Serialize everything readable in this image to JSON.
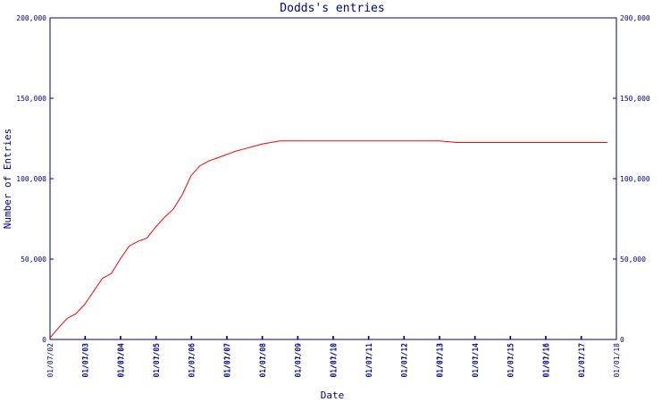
{
  "chart_data": {
    "type": "line",
    "title": "Dodds's entries",
    "xlabel": "Date",
    "ylabel": "Number of Entries",
    "ylim": [
      0,
      200000
    ],
    "y_ticks": [
      0,
      50000,
      100000,
      150000,
      200000
    ],
    "y_tick_labels": [
      "0",
      "50,000",
      "100,000",
      "150,000",
      "200,000"
    ],
    "right_y_tick_labels": [
      "0",
      "50,000",
      "100,000",
      "150,000",
      "200,000"
    ],
    "x_range": [
      "2002-01-07",
      "2018-01-01"
    ],
    "x_ticks": [
      {
        "date": "2002-01-07",
        "label": "01/07/02"
      },
      {
        "date": "2003-01-01",
        "label": "01/01/03"
      },
      {
        "date": "2003-01-07",
        "label": "01/07/03"
      },
      {
        "date": "2004-01-01",
        "label": "01/01/04"
      },
      {
        "date": "2004-01-07",
        "label": "01/07/04"
      },
      {
        "date": "2005-01-01",
        "label": "01/01/05"
      },
      {
        "date": "2005-01-07",
        "label": "01/07/05"
      },
      {
        "date": "2006-01-01",
        "label": "01/01/06"
      },
      {
        "date": "2006-01-07",
        "label": "01/07/06"
      },
      {
        "date": "2007-01-01",
        "label": "01/01/07"
      },
      {
        "date": "2007-01-07",
        "label": "01/07/07"
      },
      {
        "date": "2008-01-01",
        "label": "01/01/08"
      },
      {
        "date": "2008-01-07",
        "label": "01/07/08"
      },
      {
        "date": "2009-01-01",
        "label": "01/01/09"
      },
      {
        "date": "2009-01-07",
        "label": "01/07/09"
      },
      {
        "date": "2010-01-01",
        "label": "01/01/10"
      },
      {
        "date": "2010-01-07",
        "label": "01/07/10"
      },
      {
        "date": "2011-01-01",
        "label": "01/01/11"
      },
      {
        "date": "2011-01-07",
        "label": "01/07/11"
      },
      {
        "date": "2012-01-01",
        "label": "01/01/12"
      },
      {
        "date": "2012-01-07",
        "label": "01/07/12"
      },
      {
        "date": "2013-01-01",
        "label": "01/01/13"
      },
      {
        "date": "2013-01-07",
        "label": "01/07/13"
      },
      {
        "date": "2014-01-01",
        "label": "01/01/14"
      },
      {
        "date": "2014-01-07",
        "label": "01/07/14"
      },
      {
        "date": "2015-01-01",
        "label": "01/01/15"
      },
      {
        "date": "2015-01-07",
        "label": "01/07/15"
      },
      {
        "date": "2016-01-01",
        "label": "01/01/16"
      },
      {
        "date": "2016-01-07",
        "label": "01/07/16"
      },
      {
        "date": "2017-01-01",
        "label": "01/01/17"
      },
      {
        "date": "2017-01-07",
        "label": "01/07/17"
      },
      {
        "date": "2018-01-01",
        "label": "01/01/18"
      }
    ],
    "series": [
      {
        "color": "#ff0000",
        "x": [
          "2002-01-07",
          "2002-04-01",
          "2002-07-01",
          "2002-10-01",
          "2003-01-01",
          "2003-04-01",
          "2003-07-01",
          "2003-10-01",
          "2004-01-01",
          "2004-04-01",
          "2004-07-01",
          "2004-10-01",
          "2005-01-01",
          "2005-04-01",
          "2005-07-01",
          "2005-10-01",
          "2006-01-01",
          "2006-04-01",
          "2006-07-01",
          "2006-10-01",
          "2007-01-01",
          "2007-04-01",
          "2007-07-01",
          "2007-10-01",
          "2008-01-01",
          "2008-04-01",
          "2008-07-01",
          "2009-01-01",
          "2009-07-01",
          "2010-01-01",
          "2010-07-01",
          "2011-01-01",
          "2011-07-01",
          "2012-01-01",
          "2012-07-01",
          "2013-01-01",
          "2013-07-01",
          "2014-01-01",
          "2014-07-01",
          "2015-01-01",
          "2015-07-01",
          "2016-01-01",
          "2016-07-01",
          "2017-01-01",
          "2017-07-01",
          "2017-10-01"
        ],
        "y": [
          1000,
          7000,
          13000,
          16000,
          22000,
          30000,
          38000,
          41000,
          50000,
          58000,
          61000,
          63000,
          70000,
          76000,
          81000,
          90000,
          102000,
          108000,
          111000,
          113000,
          115000,
          117000,
          118500,
          120000,
          121500,
          122500,
          123500,
          123500,
          123500,
          123500,
          123500,
          123500,
          123500,
          123500,
          123500,
          123500,
          122500,
          122500,
          122500,
          122500,
          122500,
          122500,
          122500,
          122500,
          122500,
          122500
        ]
      }
    ],
    "grid": false,
    "legend": "none",
    "colors": {
      "axis": "#00007f",
      "line": "#ff0000",
      "background": "#ffffff"
    }
  }
}
